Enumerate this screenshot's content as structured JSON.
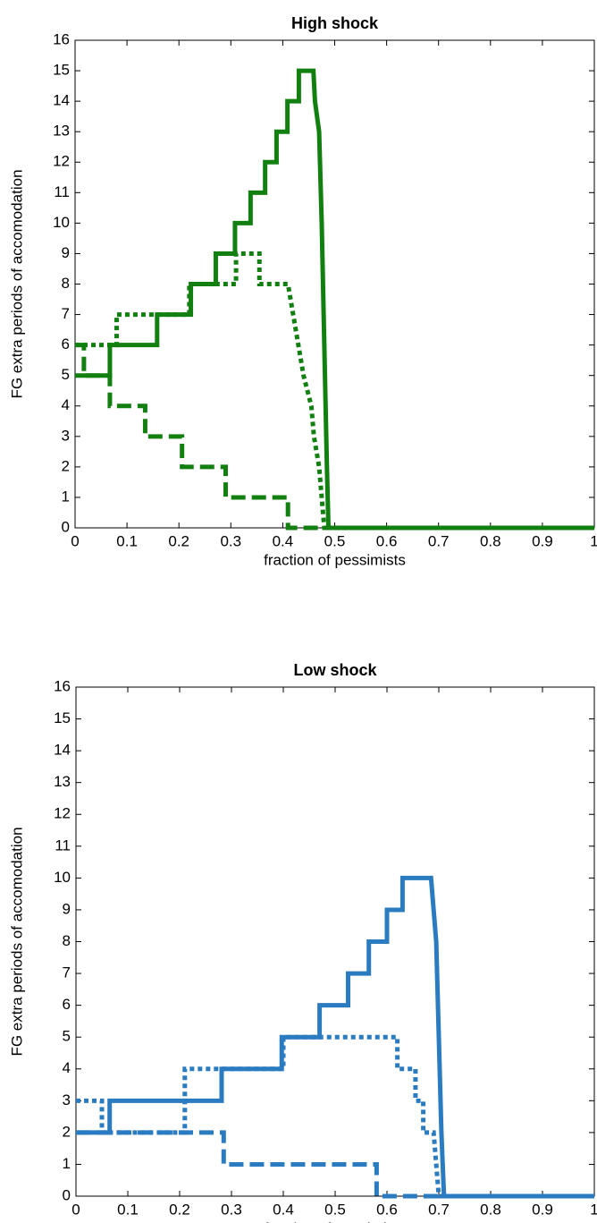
{
  "chart_data": [
    {
      "type": "line",
      "title": "High shock",
      "xlabel": "fraction of pessimists",
      "ylabel": "FG extra periods of accomodation",
      "xlim": [
        0,
        1
      ],
      "ylim": [
        0,
        16
      ],
      "xticks": [
        0,
        0.1,
        0.2,
        0.3,
        0.4,
        0.5,
        0.6,
        0.7,
        0.8,
        0.9,
        1
      ],
      "yticks": [
        0,
        1,
        2,
        3,
        4,
        5,
        6,
        7,
        8,
        9,
        10,
        11,
        12,
        13,
        14,
        15,
        16
      ],
      "series": [
        {
          "color": "#118011",
          "style": "solid",
          "x": [
            0,
            0.067,
            0.067,
            0.158,
            0.158,
            0.223,
            0.223,
            0.271,
            0.271,
            0.308,
            0.308,
            0.338,
            0.338,
            0.366,
            0.366,
            0.388,
            0.388,
            0.409,
            0.409,
            0.431,
            0.431,
            0.459,
            0.462,
            0.47,
            0.475,
            0.48,
            0.485,
            0.488,
            1
          ],
          "values": [
            5,
            5,
            6,
            6,
            7,
            7,
            8,
            8,
            9,
            9,
            10,
            10,
            11,
            11,
            12,
            12,
            13,
            13,
            14,
            14,
            15,
            15,
            14,
            13,
            10,
            6,
            2,
            0,
            0
          ]
        },
        {
          "color": "#118011",
          "style": "dotted",
          "x": [
            0,
            0.08,
            0.08,
            0.22,
            0.22,
            0.31,
            0.31,
            0.355,
            0.355,
            0.41,
            0.42,
            0.43,
            0.44,
            0.455,
            0.46,
            0.47,
            0.475,
            0.48,
            1
          ],
          "values": [
            6,
            6,
            7,
            7,
            8,
            8,
            9,
            9,
            8,
            8,
            7,
            6,
            5,
            4,
            3,
            2,
            1,
            0,
            0
          ]
        },
        {
          "color": "#118011",
          "style": "dashed",
          "x": [
            0,
            0.017,
            0.017,
            0.067,
            0.067,
            0.135,
            0.135,
            0.206,
            0.206,
            0.29,
            0.29,
            0.41,
            0.41,
            1
          ],
          "values": [
            6,
            6,
            5,
            5,
            4,
            4,
            3,
            3,
            2,
            2,
            1,
            1,
            0,
            0
          ]
        }
      ]
    },
    {
      "type": "line",
      "title": "Low shock",
      "xlabel": "fraction of pessimists",
      "ylabel": "FG extra periods of accomodation",
      "xlim": [
        0,
        1
      ],
      "ylim": [
        0,
        16
      ],
      "xticks": [
        0,
        0.1,
        0.2,
        0.3,
        0.4,
        0.5,
        0.6,
        0.7,
        0.8,
        0.9,
        1
      ],
      "yticks": [
        0,
        1,
        2,
        3,
        4,
        5,
        6,
        7,
        8,
        9,
        10,
        11,
        12,
        13,
        14,
        15,
        16
      ],
      "series": [
        {
          "color": "#2b7bc0",
          "style": "solid",
          "x": [
            0,
            0.065,
            0.065,
            0.281,
            0.281,
            0.397,
            0.397,
            0.47,
            0.47,
            0.525,
            0.525,
            0.565,
            0.565,
            0.6,
            0.6,
            0.63,
            0.63,
            0.685,
            0.69,
            0.695,
            0.7,
            0.705,
            0.71,
            1
          ],
          "values": [
            2,
            2,
            3,
            3,
            4,
            4,
            5,
            5,
            6,
            6,
            7,
            7,
            8,
            8,
            9,
            9,
            10,
            10,
            9,
            8,
            5,
            2,
            0,
            0
          ]
        },
        {
          "color": "#2b7bc0",
          "style": "dotted",
          "x": [
            0,
            0.05,
            0.05,
            0.21,
            0.21,
            0.4,
            0.4,
            0.62,
            0.62,
            0.655,
            0.655,
            0.67,
            0.67,
            0.69,
            0.7,
            1
          ],
          "values": [
            3,
            3,
            2,
            2,
            4,
            4,
            5,
            5,
            4,
            4,
            3,
            3,
            2,
            2,
            0,
            0
          ]
        },
        {
          "color": "#2b7bc0",
          "style": "dashed",
          "x": [
            0,
            0.285,
            0.285,
            0.58,
            0.58,
            1
          ],
          "values": [
            2,
            2,
            1,
            1,
            0,
            0
          ]
        }
      ]
    }
  ]
}
